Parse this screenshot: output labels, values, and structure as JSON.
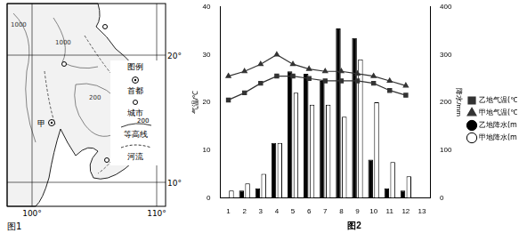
{
  "map": {
    "title": "图1",
    "lat_labels": [
      "20°",
      "10°"
    ],
    "lon_labels": [
      "100°",
      "110°"
    ],
    "legend_title": "图例",
    "legend_items": [
      "首都",
      "城市",
      "等高线",
      "河流"
    ],
    "contour_sample_label": "200",
    "contour_labels": [
      "1000",
      "1000",
      "200",
      "200"
    ],
    "place_labels": [
      "甲"
    ]
  },
  "chart_data": {
    "type": "bar",
    "title": "图2",
    "categories": [
      "1",
      "2",
      "3",
      "4",
      "5",
      "6",
      "7",
      "8",
      "9",
      "10",
      "11",
      "12",
      "13"
    ],
    "ylabel": "气温/℃",
    "y2label": "降水/mm",
    "ylim": [
      0,
      40
    ],
    "yticks": [
      0,
      10,
      20,
      30,
      40
    ],
    "y2lim": [
      0,
      400
    ],
    "y2ticks": [
      0,
      100,
      200,
      300,
      400
    ],
    "legend": "right",
    "series": [
      {
        "name": "乙地气温(℃)",
        "type": "line",
        "marker": "square",
        "color": "#333333",
        "values": [
          20.5,
          22,
          24,
          25.5,
          25.5,
          25,
          24.5,
          24.5,
          24.5,
          24,
          22.5,
          21.5,
          null
        ]
      },
      {
        "name": "甲地气温(℃)",
        "type": "line",
        "marker": "triangle",
        "color": "#333333",
        "values": [
          25.5,
          26.5,
          28,
          30,
          28,
          27,
          26.5,
          26.5,
          26,
          25.5,
          24.5,
          23.5,
          null
        ]
      },
      {
        "name": "乙地降水(mm)",
        "type": "bar",
        "axis": "y2",
        "color": "#000000",
        "values": [
          null,
          15,
          20,
          115,
          265,
          260,
          245,
          355,
          335,
          80,
          20,
          15,
          null
        ]
      },
      {
        "name": "甲地降水(mm)",
        "type": "bar",
        "axis": "y2",
        "color": "#ffffff",
        "values": [
          15,
          30,
          50,
          115,
          220,
          195,
          195,
          170,
          290,
          200,
          75,
          45,
          null
        ]
      }
    ]
  }
}
